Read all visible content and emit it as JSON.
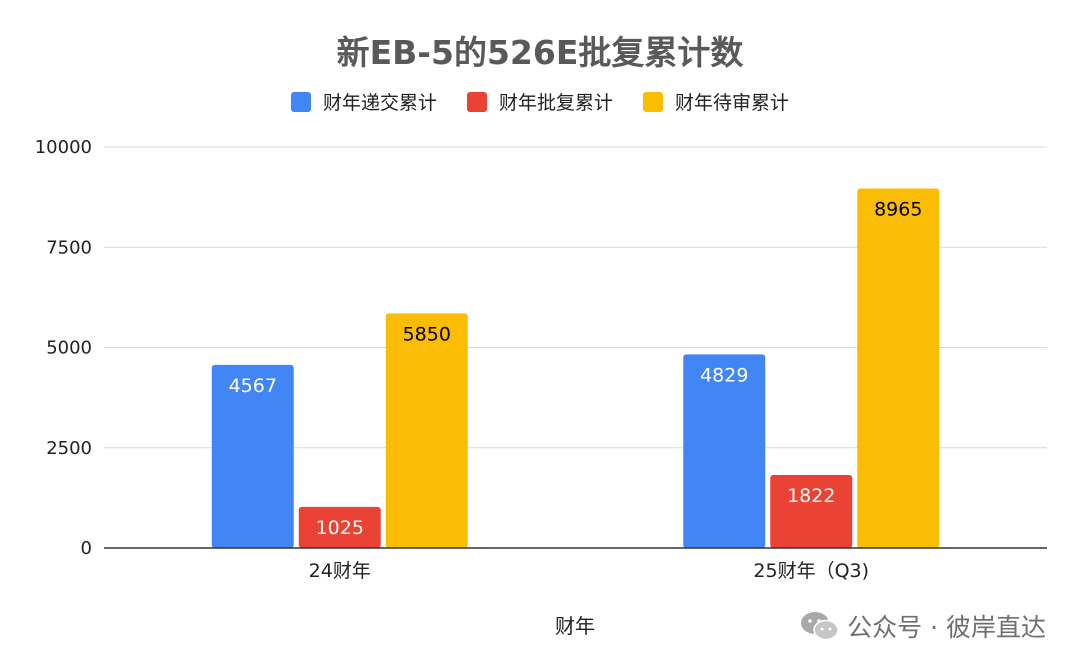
{
  "chart_data": {
    "type": "bar",
    "title": "新EB-5的526E批复累计数",
    "xlabel": "财年",
    "ylabel": "",
    "categories": [
      "24财年",
      "25财年（Q3)"
    ],
    "series": [
      {
        "name": "财年递交累计",
        "color": "#4285F4",
        "label_color": "#ffffff",
        "values": [
          4567,
          4829
        ]
      },
      {
        "name": "财年批复累计",
        "color": "#EA4335",
        "label_color": "#ffffff",
        "values": [
          1025,
          1822
        ]
      },
      {
        "name": "财年待审累计",
        "color": "#FBBC04",
        "label_color": "#000000",
        "values": [
          5850,
          8965
        ]
      }
    ],
    "ylim": [
      0,
      10000
    ],
    "yticks": [
      0,
      2500,
      5000,
      7500,
      10000
    ],
    "grid": true,
    "legend_position": "top-center"
  },
  "watermark": {
    "text": "公众号 · 彼岸直达",
    "icon": "wechat-icon"
  }
}
